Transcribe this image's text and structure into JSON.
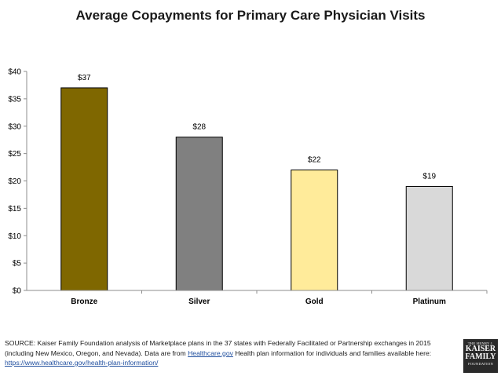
{
  "chart_data": {
    "type": "bar",
    "title": "Average Copayments for Primary Care Physician Visits",
    "categories": [
      "Bronze",
      "Silver",
      "Gold",
      "Platinum"
    ],
    "values": [
      37,
      28,
      22,
      19
    ],
    "data_labels": [
      "$37",
      "$28",
      "$22",
      "$19"
    ],
    "bar_colors": [
      "#7f6700",
      "#808080",
      "#ffeb9a",
      "#d9d9d9"
    ],
    "ylim": [
      0,
      40
    ],
    "yticks": [
      0,
      5,
      10,
      15,
      20,
      25,
      30,
      35,
      40
    ],
    "ytick_labels": [
      "$0",
      "$5",
      "$10",
      "$15",
      "$20",
      "$25",
      "$30",
      "$35",
      "$40"
    ],
    "xlabel": "",
    "ylabel": "",
    "grid": false
  },
  "source": {
    "prefix": "SOURCE: Kaiser Family Foundation analysis of Marketplace plans in the 37 states with Federally Facilitated or Partnership exchanges in 2015 (including New Mexico, Oregon, and Nevada). Data are from ",
    "link_text": "Healthcare.gov",
    "middle": " Health plan information for individuals and families available here: ",
    "url_text": "https://www.healthcare.gov/health-plan-information/"
  },
  "logo": {
    "line1": "THE HENRY J.",
    "line2": "KAISER",
    "line3": "FAMILY",
    "line4": "FOUNDATION"
  }
}
